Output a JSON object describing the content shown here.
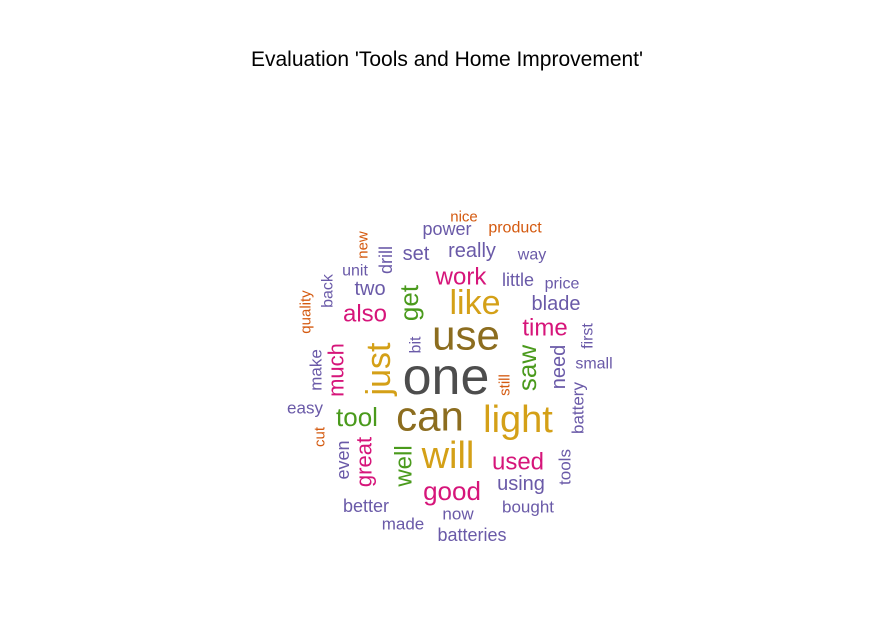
{
  "chart_data": {
    "type": "wordcloud",
    "title": "Evaluation 'Tools and Home Improvement'",
    "colors": {
      "grey": "#4d4d4d",
      "brown": "#8c6d1f",
      "gold": "#d4a017",
      "magenta": "#d6157a",
      "green": "#4a9a1c",
      "purple": "#6a5aa8",
      "orange": "#d45a10"
    },
    "words": [
      {
        "text": "one",
        "color": "grey",
        "rotated": false
      },
      {
        "text": "use",
        "color": "brown",
        "rotated": false
      },
      {
        "text": "can",
        "color": "brown",
        "rotated": false
      },
      {
        "text": "light",
        "color": "gold",
        "rotated": false
      },
      {
        "text": "will",
        "color": "gold",
        "rotated": false
      },
      {
        "text": "like",
        "color": "gold",
        "rotated": false
      },
      {
        "text": "just",
        "color": "gold",
        "rotated": true
      },
      {
        "text": "get",
        "color": "green",
        "rotated": true
      },
      {
        "text": "tool",
        "color": "green",
        "rotated": false
      },
      {
        "text": "saw",
        "color": "green",
        "rotated": true
      },
      {
        "text": "well",
        "color": "green",
        "rotated": true
      },
      {
        "text": "good",
        "color": "magenta",
        "rotated": false
      },
      {
        "text": "used",
        "color": "magenta",
        "rotated": false
      },
      {
        "text": "time",
        "color": "magenta",
        "rotated": false
      },
      {
        "text": "work",
        "color": "magenta",
        "rotated": false
      },
      {
        "text": "also",
        "color": "magenta",
        "rotated": false
      },
      {
        "text": "much",
        "color": "magenta",
        "rotated": true
      },
      {
        "text": "great",
        "color": "magenta",
        "rotated": true
      },
      {
        "text": "really",
        "color": "purple",
        "rotated": false
      },
      {
        "text": "set",
        "color": "purple",
        "rotated": false
      },
      {
        "text": "power",
        "color": "purple",
        "rotated": false
      },
      {
        "text": "two",
        "color": "purple",
        "rotated": false
      },
      {
        "text": "blade",
        "color": "purple",
        "rotated": false
      },
      {
        "text": "little",
        "color": "purple",
        "rotated": false
      },
      {
        "text": "drill",
        "color": "purple",
        "rotated": true
      },
      {
        "text": "need",
        "color": "purple",
        "rotated": true
      },
      {
        "text": "using",
        "color": "purple",
        "rotated": false
      },
      {
        "text": "even",
        "color": "purple",
        "rotated": true
      },
      {
        "text": "tools",
        "color": "purple",
        "rotated": true
      },
      {
        "text": "battery",
        "color": "purple",
        "rotated": true
      },
      {
        "text": "better",
        "color": "purple",
        "rotated": false
      },
      {
        "text": "bought",
        "color": "purple",
        "rotated": false
      },
      {
        "text": "now",
        "color": "purple",
        "rotated": false
      },
      {
        "text": "made",
        "color": "purple",
        "rotated": false
      },
      {
        "text": "batteries",
        "color": "purple",
        "rotated": false
      },
      {
        "text": "easy",
        "color": "purple",
        "rotated": false
      },
      {
        "text": "make",
        "color": "purple",
        "rotated": true
      },
      {
        "text": "back",
        "color": "purple",
        "rotated": true
      },
      {
        "text": "unit",
        "color": "purple",
        "rotated": false
      },
      {
        "text": "way",
        "color": "purple",
        "rotated": false
      },
      {
        "text": "price",
        "color": "purple",
        "rotated": false
      },
      {
        "text": "first",
        "color": "purple",
        "rotated": true
      },
      {
        "text": "small",
        "color": "purple",
        "rotated": false
      },
      {
        "text": "bit",
        "color": "purple",
        "rotated": true
      },
      {
        "text": "still",
        "color": "orange",
        "rotated": true
      },
      {
        "text": "quality",
        "color": "orange",
        "rotated": true
      },
      {
        "text": "new",
        "color": "orange",
        "rotated": true
      },
      {
        "text": "nice",
        "color": "orange",
        "rotated": false
      },
      {
        "text": "product",
        "color": "orange",
        "rotated": false
      },
      {
        "text": "cut",
        "color": "orange",
        "rotated": true
      }
    ]
  }
}
